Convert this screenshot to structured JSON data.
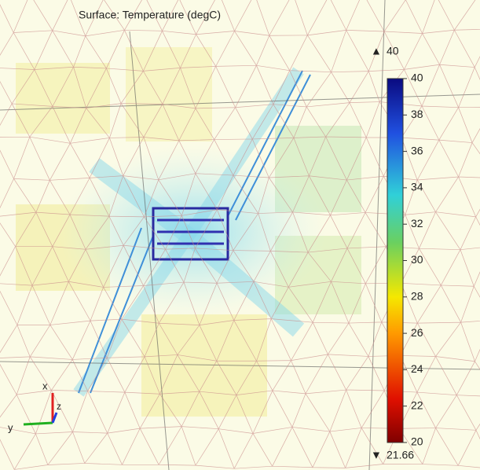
{
  "chart_data": {
    "type": "surface",
    "title": "Surface: Temperature (degC)",
    "clim": [
      20,
      40
    ],
    "cticks": [
      20,
      22,
      24,
      26,
      28,
      30,
      32,
      34,
      36,
      38,
      40
    ],
    "max": 40,
    "min": 21.66,
    "axis_labels": [
      "x",
      "y",
      "z"
    ]
  }
}
